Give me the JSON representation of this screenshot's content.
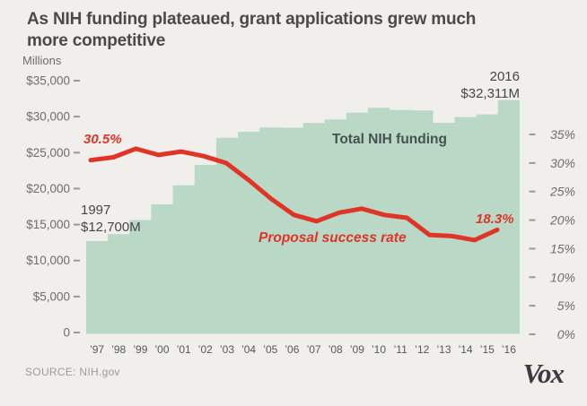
{
  "header": {
    "title_line1": "As NIH funding plateaued, grant applications grew much",
    "title_line2": "more competitive"
  },
  "chart_data": {
    "type": "combo",
    "title": "As NIH funding plateaued, grant applications grew much more competitive",
    "grid": false,
    "legend_position": "inline-annotations",
    "categories": [
      "’97",
      "’98",
      "’99",
      "’00",
      "’01",
      "’02",
      "’03",
      "’04",
      "’05",
      "’06",
      "’07",
      "’08",
      "’09",
      "’10",
      "’11",
      "’12",
      "’13",
      "’14",
      "’15",
      "’16"
    ],
    "years": [
      1997,
      1998,
      1999,
      2000,
      2001,
      2002,
      2003,
      2004,
      2005,
      2006,
      2007,
      2008,
      2009,
      2010,
      2011,
      2012,
      2013,
      2014,
      2015,
      2016
    ],
    "series": [
      {
        "name": "Total NIH funding",
        "type": "area-step",
        "axis": "left",
        "unit": "USD millions",
        "color": "#b9d8c6",
        "values": [
          12700,
          13675,
          15629,
          17814,
          20458,
          23296,
          27067,
          27888,
          28495,
          28460,
          29137,
          29607,
          30545,
          31238,
          30916,
          30852,
          29151,
          29946,
          30311,
          32311
        ]
      },
      {
        "name": "Proposal success rate",
        "type": "line",
        "axis": "right",
        "unit": "percent",
        "color": "#e03427",
        "years": [
          1997,
          1998,
          1999,
          2000,
          2001,
          2002,
          2003,
          2004,
          2005,
          2006,
          2007,
          2008,
          2009,
          2010,
          2011,
          2012,
          2013,
          2014,
          2015
        ],
        "values": [
          30.5,
          31.0,
          32.5,
          31.4,
          32.0,
          31.2,
          30.0,
          27.0,
          23.7,
          20.9,
          19.8,
          21.3,
          22.0,
          20.9,
          20.4,
          17.4,
          17.2,
          16.5,
          18.3
        ]
      }
    ],
    "left_axis": {
      "label": "Millions",
      "tick_labels": [
        "$35,000",
        "$30,000",
        "$25,000",
        "$20,000",
        "$15,000",
        "$10,000",
        "$5,000",
        "0"
      ],
      "tick_values": [
        35000,
        30000,
        25000,
        20000,
        15000,
        10000,
        5000,
        0
      ],
      "range": [
        0,
        35000
      ]
    },
    "right_axis": {
      "tick_labels": [
        "35%",
        "30%",
        "25%",
        "20%",
        "15%",
        "10%",
        "5%",
        "0%"
      ],
      "tick_values": [
        35,
        30,
        25,
        20,
        15,
        10,
        5,
        0
      ],
      "range": [
        0,
        35
      ]
    },
    "annotations": {
      "start_rate": "30.5%",
      "end_rate": "18.3%",
      "start_year": "1997",
      "start_value": "$12,700M",
      "end_year": "2016",
      "end_value": "$32,311M",
      "funding_series": "Total NIH funding",
      "rate_series": "Proposal success rate"
    }
  },
  "footer": {
    "source": "SOURCE: NIH.gov",
    "logo": "Vox"
  },
  "colors": {
    "background": "#f0efec",
    "area": "#b9d8c6",
    "line": "#e03427",
    "title": "#4a4a4a",
    "axis_text": "#6d6d6d",
    "x_labels": "#55585a",
    "annotation_text": "#474747",
    "funding_label": "#46524f",
    "tick_dash": "#9a9a9a",
    "source_text": "#9b9b9b",
    "logo_text": "#3a3a40"
  }
}
